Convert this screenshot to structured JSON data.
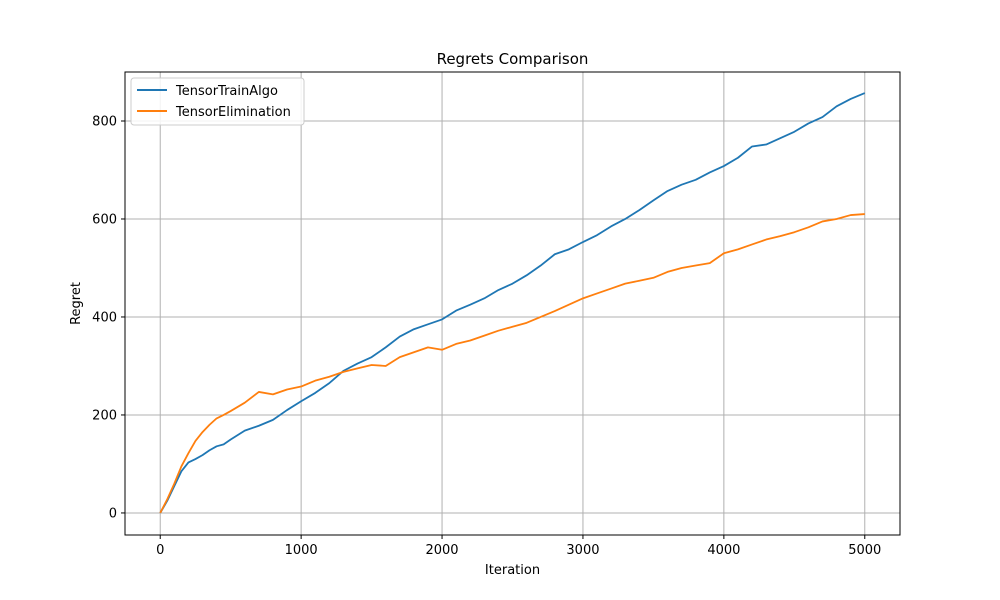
{
  "chart_data": {
    "type": "line",
    "title": "Regrets Comparison",
    "xlabel": "Iteration",
    "ylabel": "Regret",
    "xlim": [
      -250,
      5250
    ],
    "ylim": [
      -45,
      900
    ],
    "xticks": [
      0,
      1000,
      2000,
      3000,
      4000,
      5000
    ],
    "yticks": [
      0,
      200,
      400,
      600,
      800
    ],
    "grid": true,
    "legend_position": "top-left",
    "series": [
      {
        "name": "TensorTrainAlgo",
        "color": "#1f77b4",
        "x": [
          0,
          50,
          100,
          150,
          200,
          250,
          300,
          350,
          400,
          450,
          500,
          600,
          700,
          800,
          900,
          1000,
          1100,
          1200,
          1300,
          1400,
          1500,
          1600,
          1700,
          1800,
          1900,
          2000,
          2100,
          2200,
          2300,
          2400,
          2500,
          2600,
          2700,
          2800,
          2900,
          3000,
          3100,
          3200,
          3300,
          3400,
          3500,
          3600,
          3700,
          3800,
          3900,
          4000,
          4100,
          4200,
          4300,
          4400,
          4500,
          4600,
          4700,
          4800,
          4900,
          5000
        ],
        "y": [
          0,
          25,
          55,
          85,
          103,
          110,
          118,
          128,
          136,
          140,
          150,
          168,
          178,
          190,
          210,
          228,
          245,
          265,
          290,
          305,
          318,
          338,
          360,
          375,
          385,
          395,
          413,
          425,
          438,
          455,
          468,
          485,
          505,
          528,
          538,
          553,
          567,
          585,
          600,
          618,
          638,
          657,
          670,
          680,
          695,
          708,
          725,
          748,
          752,
          765,
          778,
          795,
          808,
          830,
          845,
          857
        ]
      },
      {
        "name": "TensorElimination",
        "color": "#ff7f0e",
        "x": [
          0,
          50,
          100,
          150,
          200,
          250,
          300,
          350,
          400,
          450,
          500,
          600,
          700,
          800,
          900,
          1000,
          1100,
          1200,
          1300,
          1400,
          1500,
          1600,
          1700,
          1800,
          1900,
          2000,
          2100,
          2200,
          2300,
          2400,
          2500,
          2600,
          2700,
          2800,
          2900,
          3000,
          3100,
          3200,
          3300,
          3400,
          3500,
          3600,
          3700,
          3800,
          3900,
          4000,
          4100,
          4200,
          4300,
          4400,
          4500,
          4600,
          4700,
          4800,
          4900,
          5000
        ],
        "y": [
          0,
          28,
          60,
          95,
          122,
          147,
          165,
          180,
          193,
          200,
          208,
          225,
          247,
          242,
          252,
          258,
          270,
          278,
          288,
          295,
          302,
          300,
          318,
          328,
          338,
          333,
          345,
          352,
          362,
          372,
          380,
          388,
          400,
          412,
          425,
          438,
          448,
          458,
          468,
          474,
          480,
          492,
          500,
          505,
          510,
          530,
          538,
          548,
          558,
          565,
          573,
          583,
          595,
          600,
          608,
          610
        ]
      }
    ]
  }
}
